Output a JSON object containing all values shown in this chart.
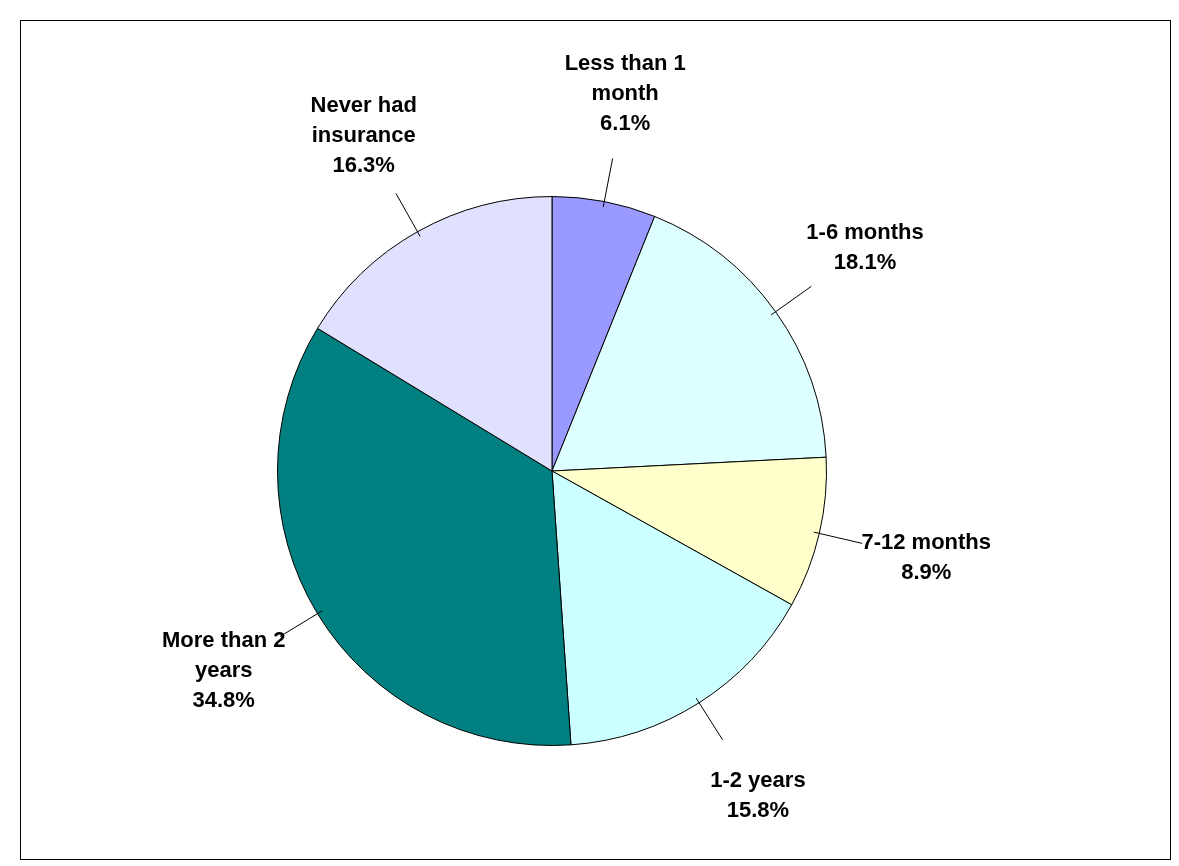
{
  "chart_data": {
    "type": "pie",
    "categories": [
      "Less than 1 month",
      "1-6 months",
      "7-12 months",
      "1-2 years",
      "More than 2 years",
      "Never had insurance"
    ],
    "values": [
      6.1,
      18.1,
      8.9,
      15.8,
      34.8,
      16.3
    ],
    "value_labels": [
      "6.1%",
      "18.1%",
      "8.9%",
      "15.8%",
      "34.8%",
      "16.3%"
    ],
    "colors": [
      "#9999ff",
      "#ddffff",
      "#ffffcc",
      "#ccffff",
      "#008080",
      "#e0e0ff"
    ],
    "legend": false
  }
}
